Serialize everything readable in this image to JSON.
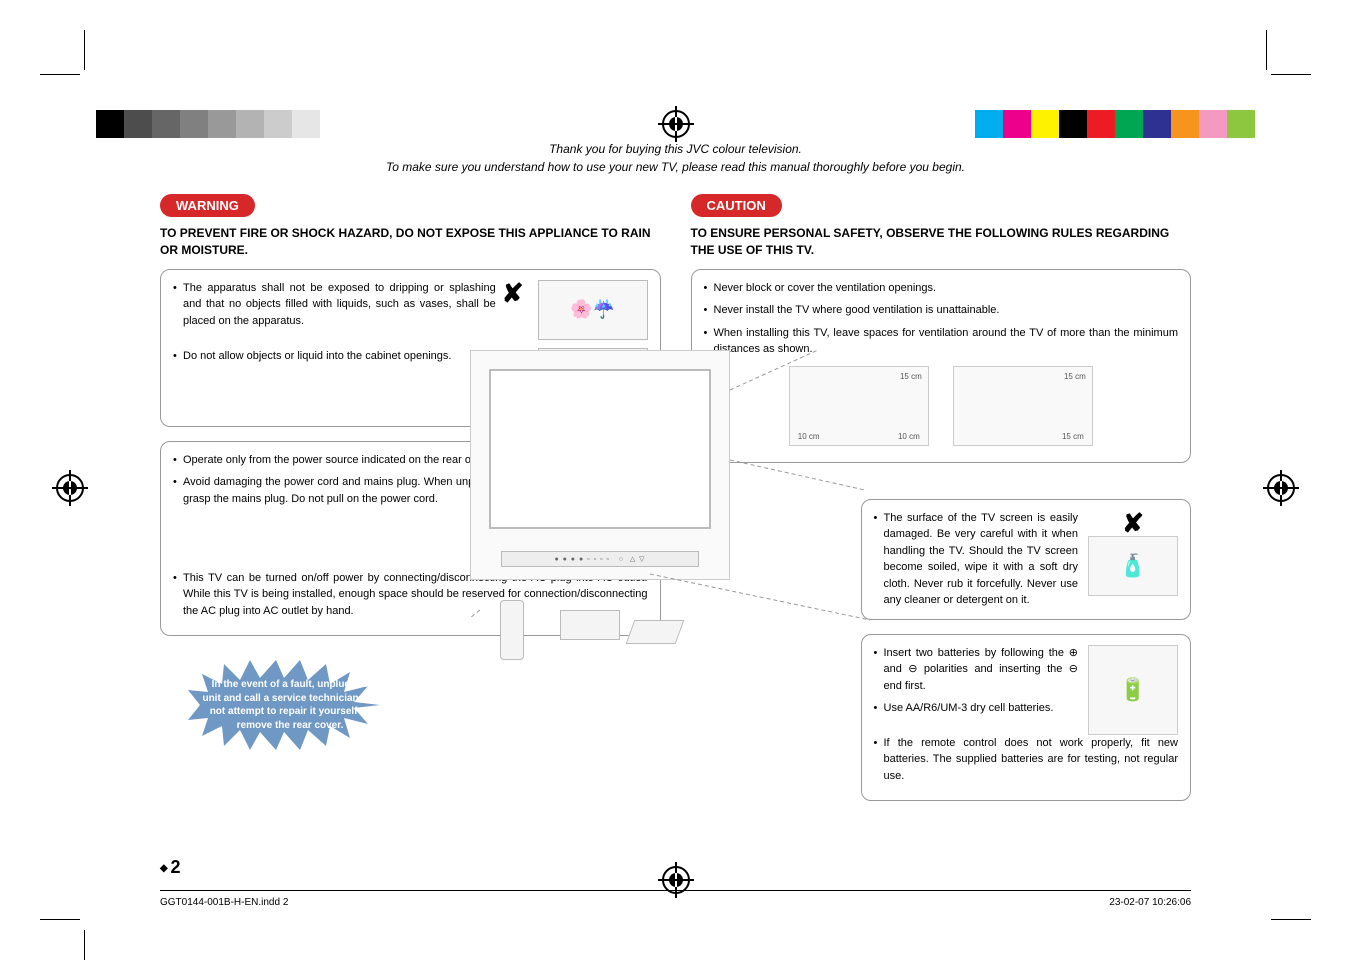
{
  "intro": {
    "line1": "Thank you for buying this JVC colour television.",
    "line2": "To make sure you understand how to use your new TV, please read this manual thoroughly before you begin."
  },
  "warning": {
    "tag": "WARNING",
    "subhead": "TO PREVENT FIRE OR SHOCK HAZARD, DO NOT EXPOSE THIS APPLIANCE TO RAIN OR MOISTURE.",
    "box1": {
      "item1": "The apparatus shall not be exposed to dripping or splashing and that no objects filled with liquids, such as vases, shall be placed on the apparatus.",
      "item2": "Do not allow objects or liquid into the cabinet openings."
    },
    "box2": {
      "item1": "Operate only from the power source indicated on the rear of the TV.",
      "item2": "Avoid damaging the power cord and mains plug. When unplugging the TV, grasp the mains plug. Do not pull on the power cord.",
      "item3": "This TV can be turned on/off power by connecting/disconnecting the AC plug into AC outlet. While this TV is being installed, enough space should be reserved for connection/disconnecting the AC plug into AC outlet by hand."
    },
    "burst": "In the event of a fault, unplug the unit and call a service technician. Do not attempt to repair it yourself or remove the rear cover."
  },
  "caution": {
    "tag": "CAUTION",
    "subhead": "TO ENSURE PERSONAL SAFETY, OBSERVE THE FOLLOWING RULES REGARDING THE USE OF THIS TV.",
    "box1": {
      "item1": "Never block or cover the ventilation openings.",
      "item2": "Never install the TV where good ventilation is unattainable.",
      "item3": "When installing this TV, leave spaces for ventilation around the TV of more than the minimum distances as shown.",
      "d1": "15 cm",
      "d2": "10 cm",
      "d3": "15 cm",
      "d4": "15 cm"
    },
    "box2": {
      "text": "The surface of the TV screen is easily damaged. Be very careful with it when handling the TV. Should the TV screen become soiled, wipe it with a soft dry cloth. Never rub it forcefully. Never use any cleaner or detergent on it."
    },
    "box3": {
      "item1": "Insert two batteries by following the ⊕ and ⊖ polarities and inserting the ⊖ end first.",
      "item2": "Use AA/R6/UM-3 dry cell batteries.",
      "item3": "If the remote control does not work properly, fit new batteries. The supplied batteries are for testing, not regular use."
    }
  },
  "page_number": "2",
  "footer": {
    "file": "GGT0144-001B-H-EN.indd   2",
    "date": "23-02-07   10:26:06"
  },
  "colors": {
    "gray_ramp": [
      "#4d4d4d",
      "#666666",
      "#808080",
      "#999999",
      "#b3b3b3",
      "#cccccc",
      "#e6e6e6",
      "#ffffff"
    ],
    "hues": [
      "#00aeef",
      "#ec008c",
      "#fff200",
      "#000000",
      "#ed1c24",
      "#00a651",
      "#2e3192",
      "#f7941d",
      "#f49ac1",
      "#8dc63f"
    ],
    "burst_fill": "#6f98c4",
    "tag_bg": "#d62828"
  }
}
